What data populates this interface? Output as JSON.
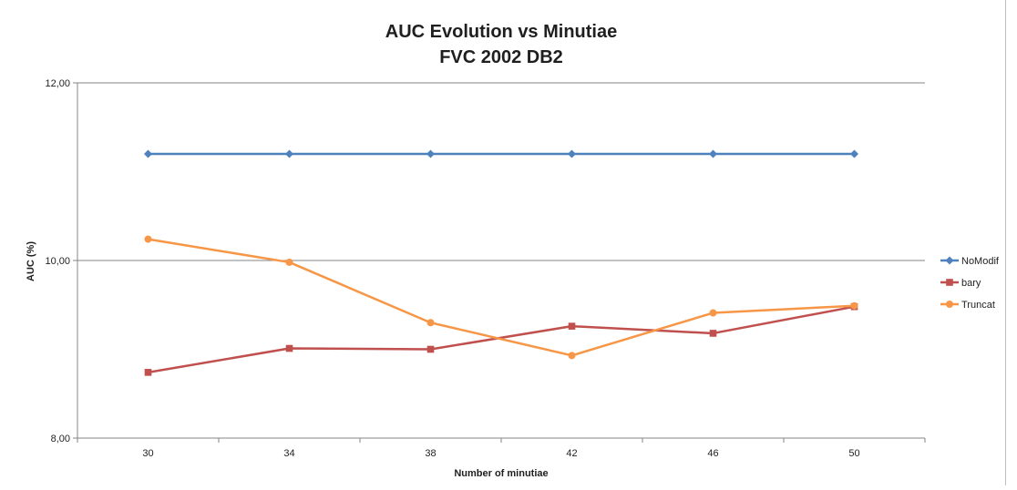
{
  "chart_data": {
    "type": "line",
    "title": "AUC Evolution vs Minutiae",
    "subtitle": "FVC 2002 DB2",
    "xlabel": "Number of minutiae",
    "ylabel": "AUC (%)",
    "categories": [
      "30",
      "34",
      "38",
      "42",
      "46",
      "50"
    ],
    "ylim": [
      8,
      12
    ],
    "yticks": [
      8,
      10,
      12
    ],
    "ytick_labels": [
      "8,00",
      "10,00",
      "12,00"
    ],
    "grid": true,
    "legend_position": "right",
    "series": [
      {
        "name": "NoModif",
        "color": "#4f81bd",
        "marker": "diamond",
        "values": [
          11.2,
          11.2,
          11.2,
          11.2,
          11.2,
          11.2
        ]
      },
      {
        "name": "bary",
        "color": "#c0504d",
        "marker": "square",
        "values": [
          8.74,
          9.01,
          9.0,
          9.26,
          9.18,
          9.48
        ]
      },
      {
        "name": "Truncat",
        "color": "#f79646",
        "marker": "circle",
        "values": [
          10.24,
          9.98,
          9.3,
          8.93,
          9.41,
          9.49
        ]
      }
    ]
  }
}
